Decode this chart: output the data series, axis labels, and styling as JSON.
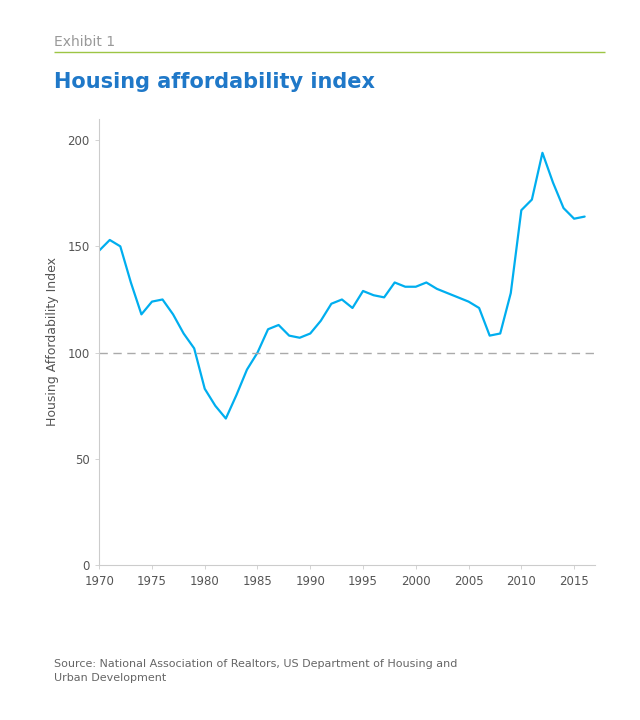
{
  "title": "Housing affordability index",
  "exhibit_label": "Exhibit 1",
  "ylabel": "Housing Affordability Index",
  "source_text": "Source: National Association of Realtors, US Department of Housing and\nUrban Development",
  "xlim": [
    1970,
    2017
  ],
  "ylim": [
    0,
    210
  ],
  "yticks": [
    0,
    50,
    100,
    150,
    200
  ],
  "xticks": [
    1970,
    1975,
    1980,
    1985,
    1990,
    1995,
    2000,
    2005,
    2010,
    2015
  ],
  "dashed_line_y": 100,
  "line_color": "#00AEEF",
  "dashed_color": "#AAAAAA",
  "title_color": "#1F78C8",
  "exhibit_color": "#999999",
  "background_color": "#FFFFFF",
  "spine_color": "#CCCCCC",
  "tick_label_color": "#555555",
  "separator_color": "#9DC544",
  "source_color": "#666666",
  "years": [
    1970,
    1971,
    1972,
    1973,
    1974,
    1975,
    1976,
    1977,
    1978,
    1979,
    1980,
    1981,
    1982,
    1983,
    1984,
    1985,
    1986,
    1987,
    1988,
    1989,
    1990,
    1991,
    1992,
    1993,
    1994,
    1995,
    1996,
    1997,
    1998,
    1999,
    2000,
    2001,
    2002,
    2003,
    2004,
    2005,
    2006,
    2007,
    2008,
    2009,
    2010,
    2011,
    2012,
    2013,
    2014,
    2015,
    2016
  ],
  "values": [
    148,
    153,
    150,
    133,
    118,
    124,
    125,
    118,
    109,
    102,
    83,
    75,
    69,
    80,
    92,
    100,
    111,
    113,
    108,
    107,
    109,
    115,
    123,
    125,
    121,
    129,
    127,
    126,
    133,
    131,
    131,
    133,
    130,
    128,
    126,
    124,
    121,
    108,
    109,
    128,
    167,
    172,
    194,
    180,
    168,
    163,
    164
  ]
}
